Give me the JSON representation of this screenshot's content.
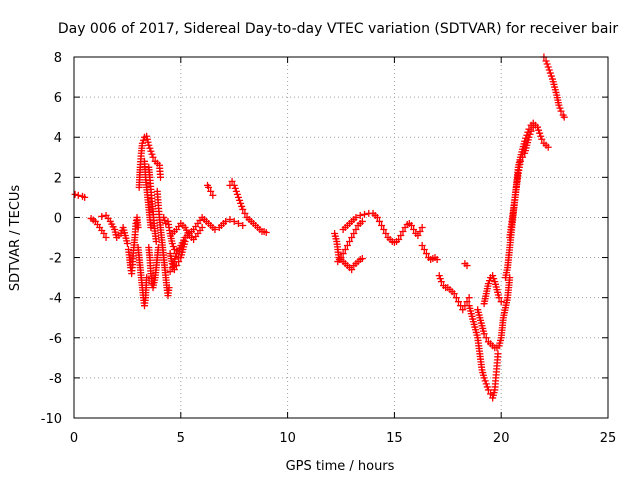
{
  "chart_data": {
    "type": "scatter",
    "title": "Day 006 of 2017, Sidereal Day-to-day VTEC variation (SDTVAR) for receiver bair",
    "xlabel": "GPS time / hours",
    "ylabel": "SDTVAR / TECUs",
    "xlim": [
      0,
      25
    ],
    "ylim": [
      -10,
      8
    ],
    "xticks": [
      0,
      5,
      10,
      15,
      20,
      25
    ],
    "yticks": [
      -10,
      -8,
      -6,
      -4,
      -2,
      0,
      2,
      4,
      6,
      8
    ],
    "xtick_labels": [
      "0",
      "5",
      "10",
      "15",
      "20",
      "25"
    ],
    "ytick_labels": [
      "-10",
      "-8",
      "-6",
      "-4",
      "-2",
      "0",
      "2",
      "4",
      "6",
      "8"
    ],
    "grid": true,
    "marker": "+",
    "color": "#ff0000",
    "segments": [
      [
        [
          0.05,
          1.15
        ],
        [
          0.2,
          1.1
        ],
        [
          0.4,
          1.05
        ],
        [
          0.5,
          1.0
        ]
      ],
      [
        [
          0.8,
          -0.05
        ],
        [
          1.0,
          -0.2
        ],
        [
          1.2,
          -0.5
        ],
        [
          1.4,
          -0.8
        ],
        [
          1.5,
          -1.0
        ]
      ],
      [
        [
          1.3,
          0.05
        ],
        [
          1.5,
          0.1
        ],
        [
          1.7,
          -0.2
        ],
        [
          1.9,
          -0.6
        ],
        [
          2.0,
          -1.0
        ],
        [
          2.2,
          -0.8
        ],
        [
          2.3,
          -0.5
        ],
        [
          2.4,
          -0.9
        ],
        [
          2.5,
          -1.3
        ]
      ],
      [
        [
          2.55,
          -1.6
        ],
        [
          2.6,
          -2.0
        ],
        [
          2.65,
          -2.5
        ],
        [
          2.7,
          -2.8
        ],
        [
          2.75,
          -2.2
        ],
        [
          2.8,
          -1.5
        ],
        [
          2.85,
          -1.0
        ],
        [
          2.9,
          -0.3
        ],
        [
          2.95,
          0.0
        ],
        [
          3.0,
          -0.5
        ]
      ],
      [
        [
          3.0,
          -1.5
        ],
        [
          3.05,
          -2.0
        ],
        [
          3.1,
          -2.5
        ],
        [
          3.15,
          -3.0
        ],
        [
          3.2,
          -3.5
        ],
        [
          3.25,
          -4.0
        ],
        [
          3.3,
          -4.4
        ],
        [
          3.35,
          -4.0
        ],
        [
          3.4,
          -3.0
        ]
      ],
      [
        [
          3.05,
          1.5
        ],
        [
          3.1,
          2.5
        ],
        [
          3.15,
          3.2
        ],
        [
          3.2,
          3.7
        ],
        [
          3.3,
          4.0
        ],
        [
          3.4,
          4.05
        ],
        [
          3.5,
          3.6
        ],
        [
          3.6,
          3.3
        ],
        [
          3.7,
          3.0
        ],
        [
          3.8,
          2.8
        ],
        [
          3.9,
          2.7
        ],
        [
          4.0,
          2.6
        ],
        [
          4.05,
          2.0
        ]
      ],
      [
        [
          3.3,
          2.8
        ],
        [
          3.35,
          2.0
        ],
        [
          3.4,
          1.5
        ],
        [
          3.45,
          1.0
        ],
        [
          3.5,
          0.5
        ],
        [
          3.55,
          0.0
        ],
        [
          3.6,
          -0.5
        ]
      ],
      [
        [
          3.5,
          2.5
        ],
        [
          3.55,
          2.0
        ],
        [
          3.6,
          1.4
        ],
        [
          3.65,
          0.8
        ],
        [
          3.7,
          0.3
        ],
        [
          3.75,
          -0.3
        ],
        [
          3.8,
          -0.8
        ],
        [
          3.85,
          -1.2
        ]
      ],
      [
        [
          3.5,
          -1.5
        ],
        [
          3.55,
          -2.0
        ],
        [
          3.6,
          -2.8
        ],
        [
          3.65,
          -3.3
        ],
        [
          3.7,
          -3.5
        ],
        [
          3.8,
          -3.0
        ],
        [
          3.85,
          -2.5
        ],
        [
          3.9,
          -2.0
        ],
        [
          3.95,
          -1.5
        ]
      ],
      [
        [
          3.9,
          1.3
        ],
        [
          3.95,
          0.6
        ],
        [
          4.0,
          0.0
        ],
        [
          4.05,
          -0.5
        ],
        [
          4.1,
          -1.0
        ],
        [
          4.15,
          -1.5
        ],
        [
          4.2,
          -2.0
        ],
        [
          4.25,
          -2.5
        ],
        [
          4.3,
          -3.0
        ],
        [
          4.35,
          -3.5
        ],
        [
          4.4,
          -3.9
        ],
        [
          4.45,
          -3.5
        ]
      ],
      [
        [
          4.2,
          0.0
        ],
        [
          4.3,
          -0.3
        ],
        [
          4.4,
          -0.2
        ],
        [
          4.5,
          -0.8
        ],
        [
          4.6,
          -1.3
        ],
        [
          4.7,
          -1.6
        ],
        [
          4.8,
          -1.8
        ],
        [
          4.9,
          -2.0
        ]
      ],
      [
        [
          4.5,
          -1.8
        ],
        [
          4.6,
          -2.3
        ],
        [
          4.7,
          -2.6
        ],
        [
          4.8,
          -2.4
        ],
        [
          4.9,
          -2.2
        ],
        [
          5.0,
          -2.0
        ],
        [
          5.1,
          -1.6
        ],
        [
          5.2,
          -1.2
        ]
      ],
      [
        [
          4.5,
          -2.7
        ],
        [
          4.6,
          -2.5
        ],
        [
          4.8,
          -1.8
        ],
        [
          5.0,
          -1.4
        ],
        [
          5.2,
          -1.0
        ],
        [
          5.4,
          -0.8
        ],
        [
          5.6,
          -0.6
        ],
        [
          5.8,
          -0.3
        ],
        [
          6.0,
          0.0
        ],
        [
          6.2,
          -0.2
        ],
        [
          6.4,
          -0.4
        ],
        [
          6.6,
          -0.6
        ],
        [
          6.8,
          -0.5
        ]
      ],
      [
        [
          4.6,
          -0.8
        ],
        [
          4.8,
          -0.6
        ],
        [
          5.0,
          -0.3
        ],
        [
          5.2,
          -0.5
        ],
        [
          5.4,
          -0.9
        ],
        [
          5.6,
          -1.1
        ],
        [
          5.8,
          -0.8
        ],
        [
          6.0,
          -0.5
        ]
      ],
      [
        [
          6.25,
          1.6
        ],
        [
          6.3,
          1.5
        ],
        [
          6.4,
          1.3
        ],
        [
          6.5,
          1.1
        ]
      ],
      [
        [
          6.9,
          -0.4
        ],
        [
          7.1,
          -0.2
        ],
        [
          7.3,
          -0.1
        ],
        [
          7.5,
          -0.2
        ],
        [
          7.7,
          -0.3
        ],
        [
          7.9,
          -0.4
        ]
      ],
      [
        [
          7.3,
          1.6
        ],
        [
          7.4,
          1.8
        ],
        [
          7.5,
          1.6
        ],
        [
          7.6,
          1.3
        ],
        [
          7.7,
          1.0
        ],
        [
          7.8,
          0.7
        ],
        [
          7.9,
          0.4
        ],
        [
          8.0,
          0.2
        ],
        [
          8.1,
          0.0
        ],
        [
          8.2,
          -0.1
        ],
        [
          8.3,
          -0.2
        ],
        [
          8.4,
          -0.3
        ],
        [
          8.5,
          -0.4
        ],
        [
          8.6,
          -0.5
        ],
        [
          8.7,
          -0.6
        ],
        [
          8.8,
          -0.7
        ],
        [
          8.9,
          -0.7
        ],
        [
          9.0,
          -0.75
        ]
      ],
      [
        [
          12.2,
          -0.8
        ],
        [
          12.3,
          -1.2
        ],
        [
          12.35,
          -1.6
        ],
        [
          12.4,
          -2.0
        ],
        [
          12.5,
          -2.1
        ],
        [
          12.6,
          -2.2
        ],
        [
          12.7,
          -2.3
        ],
        [
          12.8,
          -2.4
        ],
        [
          12.9,
          -2.5
        ],
        [
          13.0,
          -2.6
        ],
        [
          13.1,
          -2.4
        ],
        [
          13.2,
          -2.3
        ],
        [
          13.3,
          -2.2
        ],
        [
          13.4,
          -2.1
        ],
        [
          13.5,
          -2.05
        ]
      ],
      [
        [
          12.35,
          -2.2
        ],
        [
          12.5,
          -2.0
        ],
        [
          12.6,
          -1.8
        ],
        [
          12.7,
          -1.6
        ],
        [
          12.8,
          -1.4
        ],
        [
          12.9,
          -1.2
        ],
        [
          13.0,
          -1.0
        ],
        [
          13.1,
          -0.8
        ],
        [
          13.2,
          -0.6
        ],
        [
          13.3,
          -0.4
        ],
        [
          13.4,
          -0.3
        ],
        [
          13.5,
          -0.2
        ]
      ],
      [
        [
          12.6,
          -0.6
        ],
        [
          12.8,
          -0.4
        ],
        [
          13.0,
          -0.2
        ],
        [
          13.2,
          0.0
        ],
        [
          13.4,
          0.1
        ],
        [
          13.6,
          0.15
        ],
        [
          13.8,
          0.2
        ],
        [
          14.0,
          0.2
        ],
        [
          14.1,
          0.1
        ],
        [
          14.2,
          0.0
        ],
        [
          14.3,
          -0.2
        ],
        [
          14.4,
          -0.4
        ],
        [
          14.5,
          -0.6
        ],
        [
          14.6,
          -0.8
        ],
        [
          14.7,
          -1.0
        ],
        [
          14.8,
          -1.1
        ],
        [
          14.9,
          -1.2
        ],
        [
          15.0,
          -1.25
        ],
        [
          15.1,
          -1.2
        ],
        [
          15.2,
          -1.1
        ],
        [
          15.3,
          -0.9
        ],
        [
          15.4,
          -0.7
        ],
        [
          15.5,
          -0.5
        ],
        [
          15.6,
          -0.35
        ],
        [
          15.7,
          -0.3
        ],
        [
          15.8,
          -0.4
        ],
        [
          15.9,
          -0.6
        ],
        [
          16.0,
          -0.8
        ],
        [
          16.1,
          -0.9
        ],
        [
          16.2,
          -0.7
        ],
        [
          16.3,
          -0.5
        ]
      ],
      [
        [
          16.3,
          -1.4
        ],
        [
          16.4,
          -1.6
        ],
        [
          16.5,
          -1.8
        ],
        [
          16.6,
          -2.0
        ],
        [
          16.7,
          -2.1
        ],
        [
          16.8,
          -2.05
        ],
        [
          16.9,
          -2.0
        ],
        [
          17.0,
          -2.1
        ]
      ],
      [
        [
          17.1,
          -2.9
        ],
        [
          17.2,
          -3.2
        ],
        [
          17.3,
          -3.4
        ],
        [
          17.4,
          -3.5
        ],
        [
          17.5,
          -3.5
        ],
        [
          17.6,
          -3.6
        ],
        [
          17.7,
          -3.7
        ],
        [
          17.8,
          -3.8
        ],
        [
          17.9,
          -4.0
        ],
        [
          18.0,
          -4.2
        ],
        [
          18.1,
          -4.4
        ],
        [
          18.2,
          -4.6
        ],
        [
          18.3,
          -4.4
        ],
        [
          18.4,
          -4.2
        ],
        [
          18.5,
          -4.0
        ]
      ],
      [
        [
          18.3,
          -2.3
        ],
        [
          18.4,
          -2.4
        ]
      ],
      [
        [
          18.5,
          -4.4
        ],
        [
          18.6,
          -4.8
        ],
        [
          18.7,
          -5.2
        ],
        [
          18.8,
          -5.6
        ],
        [
          18.9,
          -6.0
        ],
        [
          18.95,
          -6.4
        ],
        [
          19.0,
          -6.8
        ],
        [
          19.05,
          -7.2
        ],
        [
          19.1,
          -7.6
        ],
        [
          19.2,
          -8.0
        ],
        [
          19.3,
          -8.3
        ],
        [
          19.4,
          -8.6
        ],
        [
          19.5,
          -8.8
        ],
        [
          19.6,
          -9.0
        ],
        [
          19.7,
          -8.6
        ],
        [
          19.75,
          -8.0
        ],
        [
          19.8,
          -7.4
        ],
        [
          19.85,
          -6.8
        ]
      ],
      [
        [
          18.9,
          -4.6
        ],
        [
          19.0,
          -5.0
        ],
        [
          19.1,
          -5.4
        ],
        [
          19.2,
          -5.8
        ],
        [
          19.3,
          -6.0
        ],
        [
          19.4,
          -6.2
        ],
        [
          19.5,
          -6.3
        ],
        [
          19.6,
          -6.4
        ],
        [
          19.7,
          -6.5
        ],
        [
          19.8,
          -6.5
        ],
        [
          19.9,
          -6.4
        ],
        [
          20.0,
          -6.0
        ],
        [
          20.05,
          -5.5
        ],
        [
          20.1,
          -5.0
        ],
        [
          20.2,
          -4.5
        ],
        [
          20.3,
          -4.0
        ],
        [
          20.35,
          -3.5
        ],
        [
          20.4,
          -3.0
        ]
      ],
      [
        [
          19.2,
          -4.3
        ],
        [
          19.3,
          -3.8
        ],
        [
          19.4,
          -3.3
        ],
        [
          19.5,
          -3.0
        ],
        [
          19.6,
          -2.9
        ],
        [
          19.7,
          -3.2
        ],
        [
          19.8,
          -3.6
        ],
        [
          19.9,
          -4.0
        ],
        [
          20.0,
          -4.2
        ]
      ],
      [
        [
          20.2,
          -3.0
        ],
        [
          20.3,
          -2.5
        ],
        [
          20.35,
          -2.0
        ],
        [
          20.4,
          -1.5
        ],
        [
          20.45,
          -1.0
        ],
        [
          20.5,
          -0.5
        ],
        [
          20.55,
          0.0
        ],
        [
          20.6,
          0.5
        ],
        [
          20.65,
          1.0
        ],
        [
          20.7,
          1.5
        ],
        [
          20.75,
          2.0
        ],
        [
          20.8,
          2.5
        ],
        [
          20.9,
          3.0
        ],
        [
          21.0,
          3.4
        ],
        [
          21.1,
          3.8
        ],
        [
          21.2,
          4.1
        ],
        [
          21.3,
          4.4
        ],
        [
          21.4,
          4.6
        ],
        [
          21.5,
          4.7
        ],
        [
          21.6,
          4.6
        ],
        [
          21.7,
          4.5
        ],
        [
          21.8,
          4.2
        ],
        [
          21.9,
          3.9
        ],
        [
          22.0,
          3.7
        ],
        [
          22.1,
          3.6
        ],
        [
          22.2,
          3.5
        ]
      ],
      [
        [
          20.4,
          -1.0
        ],
        [
          20.5,
          -0.2
        ],
        [
          20.6,
          0.6
        ],
        [
          20.7,
          1.4
        ],
        [
          20.8,
          2.2
        ],
        [
          20.9,
          2.8
        ],
        [
          21.0,
          3.0
        ],
        [
          21.1,
          3.2
        ],
        [
          21.2,
          3.6
        ],
        [
          21.3,
          4.0
        ],
        [
          21.4,
          4.3
        ],
        [
          21.5,
          4.5
        ]
      ],
      [
        [
          22.0,
          8.0
        ],
        [
          22.1,
          7.8
        ],
        [
          22.2,
          7.5
        ],
        [
          22.3,
          7.2
        ],
        [
          22.4,
          6.9
        ],
        [
          22.5,
          6.5
        ],
        [
          22.6,
          6.1
        ],
        [
          22.7,
          5.6
        ],
        [
          22.8,
          5.3
        ],
        [
          22.9,
          5.1
        ],
        [
          22.95,
          5.0
        ]
      ]
    ]
  }
}
